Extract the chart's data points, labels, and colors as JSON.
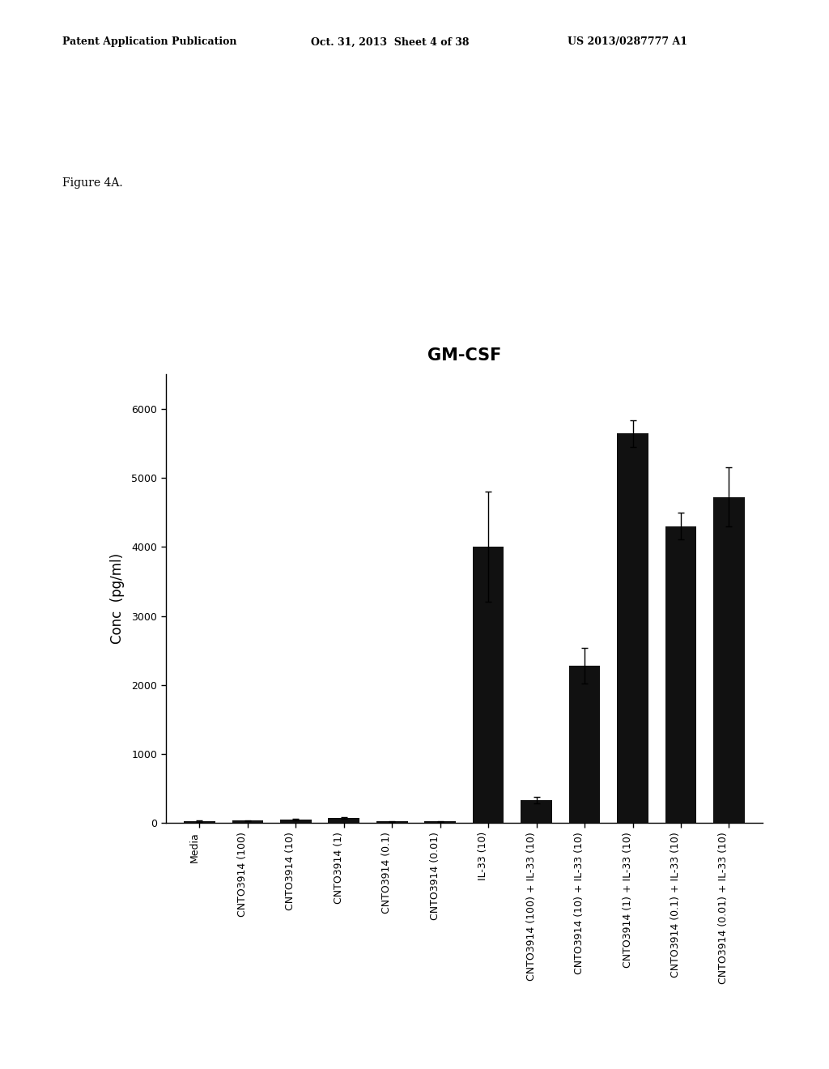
{
  "title": "GM-CSF",
  "ylabel": "Conc  (pg/ml)",
  "categories": [
    "Media",
    "CNTO3914 (100)",
    "CNTO3914 (10)",
    "CNTO3914 (1)",
    "CNTO3914 (0.1)",
    "CNTO3914 (0.01)",
    "IL-33 (10)",
    "CNTO3914 (100) + IL-33 (10)",
    "CNTO3914 (10) + IL-33 (10)",
    "CNTO3914 (1) + IL-33 (10)",
    "CNTO3914 (0.1) + IL-33 (10)",
    "CNTO3914 (0.01) + IL-33 (10)"
  ],
  "values": [
    30,
    35,
    55,
    75,
    25,
    25,
    4000,
    330,
    2280,
    5640,
    4300,
    4720
  ],
  "errors": [
    8,
    8,
    12,
    12,
    8,
    8,
    800,
    45,
    260,
    190,
    190,
    430
  ],
  "bar_color": "#111111",
  "bar_width": 0.65,
  "ylim": [
    0,
    6500
  ],
  "yticks": [
    0,
    1000,
    2000,
    3000,
    4000,
    5000,
    6000
  ],
  "figure_label": "Figure 4A.",
  "patent_left": "Patent Application Publication",
  "patent_mid": "Oct. 31, 2013  Sheet 4 of 38",
  "patent_right": "US 2013/0287777 A1",
  "background_color": "#ffffff",
  "title_fontsize": 15,
  "tick_fontsize": 9,
  "ylabel_fontsize": 12,
  "header_fontsize": 9,
  "figure_label_fontsize": 10
}
